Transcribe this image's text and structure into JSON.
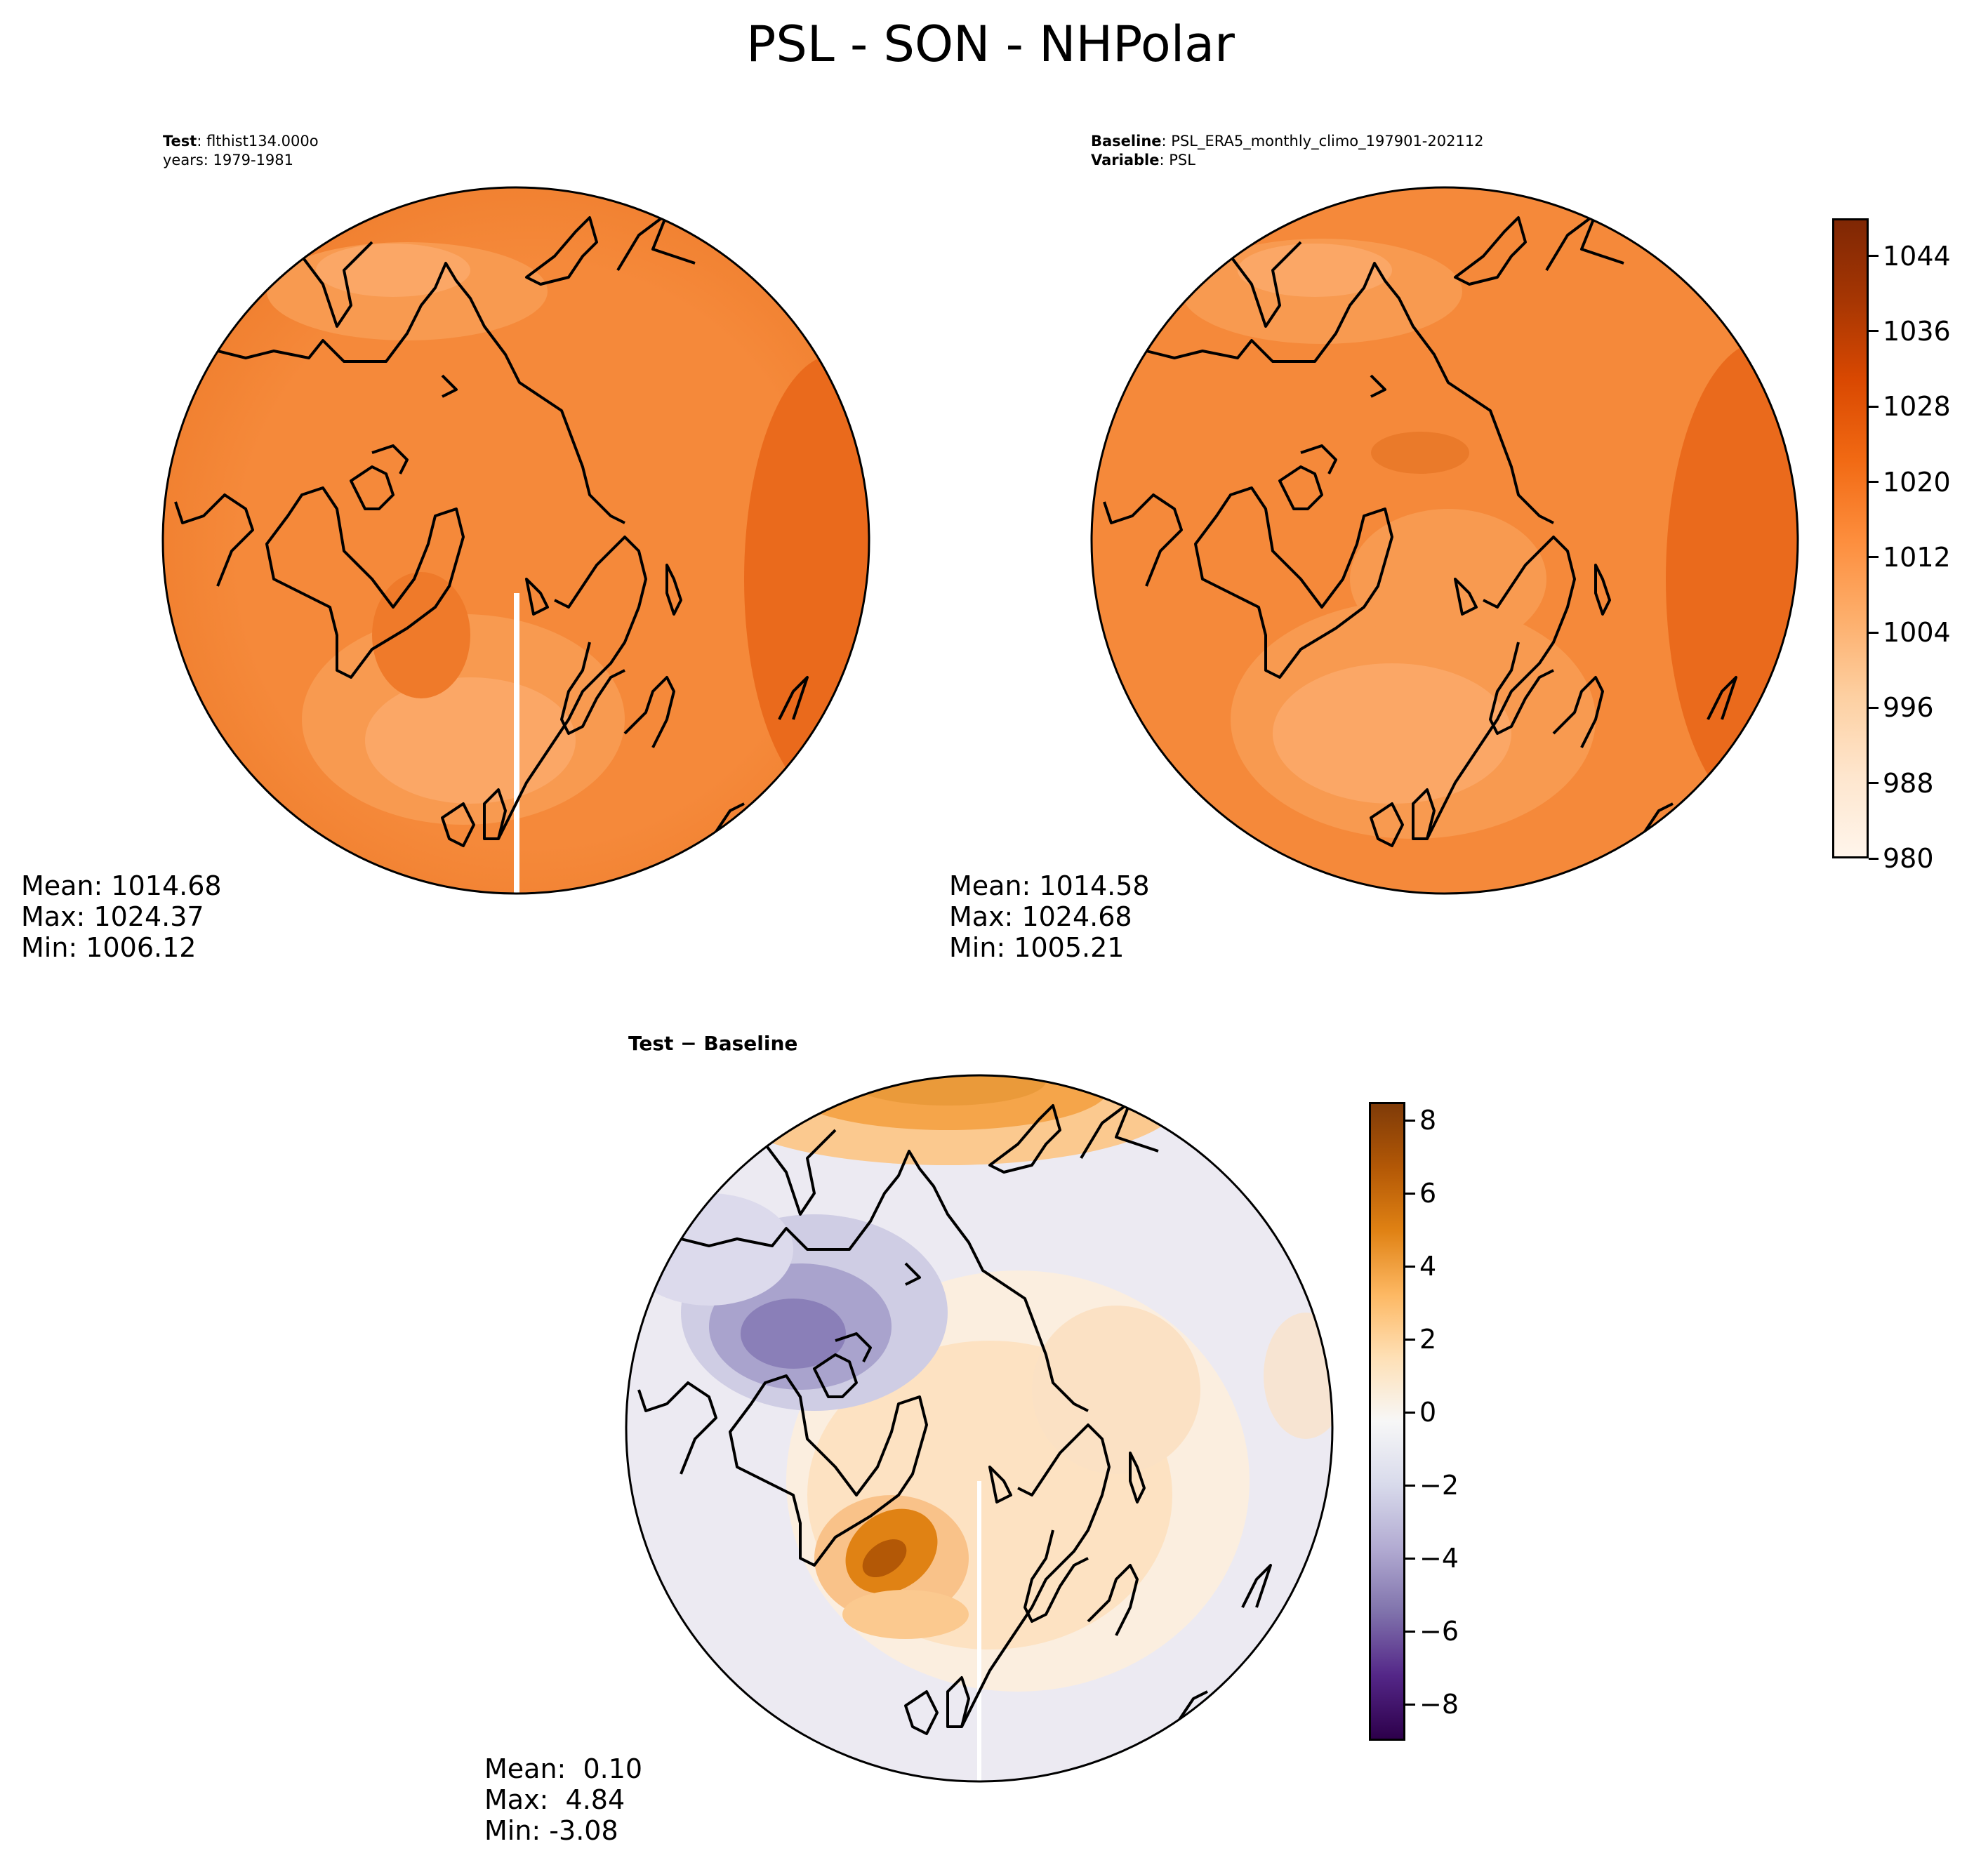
{
  "suptitle": "PSL - SON - NHPolar",
  "panels": {
    "test": {
      "label_bold": "Test",
      "label_rest": ": flthist134.000o",
      "line2": "years: 1979-1981",
      "stats": {
        "mean": "Mean: 1014.68",
        "max": "Max: 1024.37",
        "min": "Min: 1006.12"
      }
    },
    "baseline": {
      "label_bold": "Baseline",
      "label_rest": ": PSL_ERA5_monthly_climo_197901-202112",
      "line2_bold": "Variable",
      "line2_rest": ": PSL",
      "stats": {
        "mean": "Mean: 1014.58",
        "max": "Max: 1024.68",
        "min": "Min: 1005.21"
      }
    },
    "diff": {
      "title": "Test − Baseline",
      "stats": {
        "mean": "Mean:  0.10",
        "max": "Max:  4.84",
        "min": "Min: -3.08"
      }
    }
  },
  "colors": {
    "orange_ramp": [
      "#fff5eb",
      "#fee6ce",
      "#fdd0a2",
      "#fdae6b",
      "#fd8d3c",
      "#f16913",
      "#d94801",
      "#a63603",
      "#7f2704"
    ],
    "diff_ramp": [
      "#2d004b",
      "#542788",
      "#8073ac",
      "#b2abd2",
      "#d8daeb",
      "#f7f7f7",
      "#fee0b6",
      "#fdb863",
      "#e08214",
      "#b35806",
      "#7f3b08"
    ],
    "field_main": "#f5893a",
    "field_light": "#fba766",
    "field_dark": "#ea6a1c",
    "coast": "#000000"
  },
  "chart_data": [
    {
      "type": "heatmap",
      "title": "Test: flthist134.000o",
      "subtitle": "years: 1979-1981",
      "projection": "north-polar-stereographic",
      "variable": "PSL",
      "season": "SON",
      "stats": {
        "mean": 1014.68,
        "max": 1024.37,
        "min": 1006.12
      }
    },
    {
      "type": "heatmap",
      "title": "Baseline: PSL_ERA5_monthly_climo_197901-202112",
      "subtitle": "Variable: PSL",
      "projection": "north-polar-stereographic",
      "stats": {
        "mean": 1014.58,
        "max": 1024.68,
        "min": 1005.21
      },
      "colorbar": {
        "range": [
          980,
          1048
        ],
        "ticks": [
          980,
          988,
          996,
          1004,
          1012,
          1020,
          1028,
          1036,
          1044
        ],
        "cmap": "Oranges"
      }
    },
    {
      "type": "heatmap",
      "title": "Test − Baseline",
      "projection": "north-polar-stereographic",
      "stats": {
        "mean": 0.1,
        "max": 4.84,
        "min": -3.08
      },
      "colorbar": {
        "range": [
          -9,
          8.5
        ],
        "ticks": [
          -8,
          -6,
          -4,
          -2,
          0,
          2,
          4,
          6,
          8
        ],
        "tick_labels": [
          "−8",
          "−6",
          "−4",
          "−2",
          "0",
          "2",
          "4",
          "6",
          "8"
        ],
        "cmap": "PuOr_r"
      }
    }
  ]
}
